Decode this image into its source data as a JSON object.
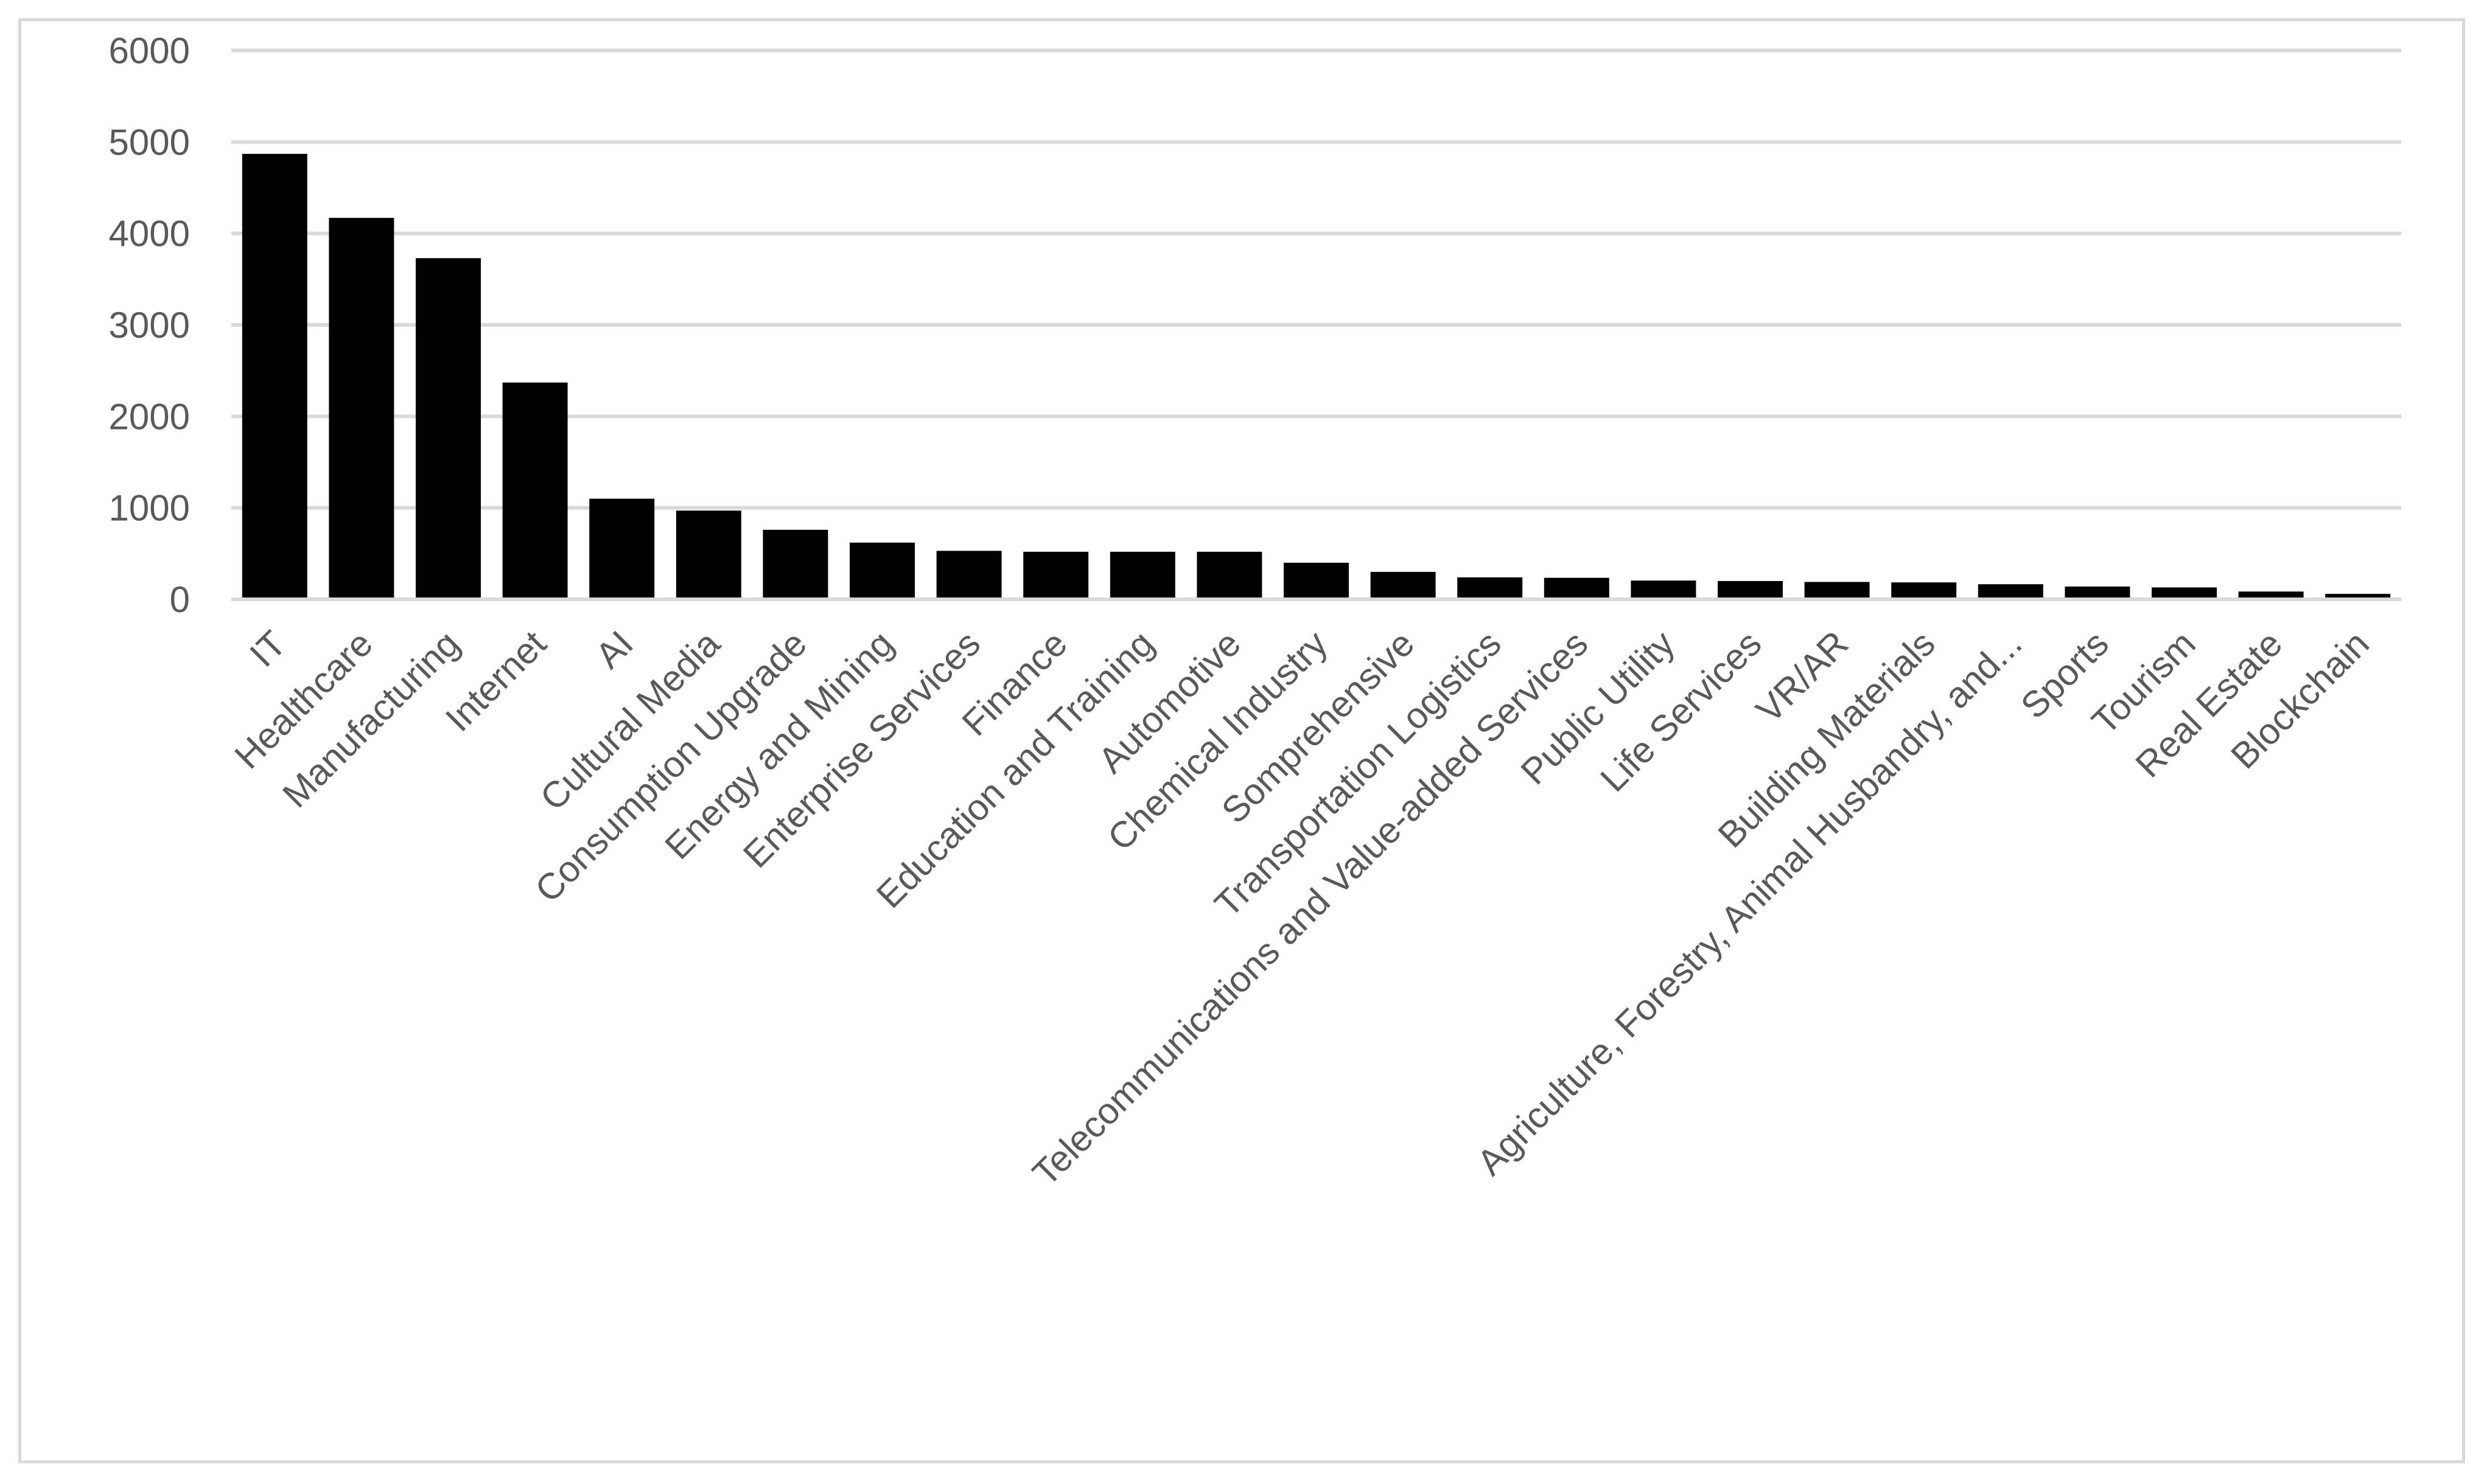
{
  "chart_data": {
    "type": "bar",
    "categories": [
      "IT",
      "Healthcare",
      "Manufacturing",
      "Internet",
      "AI",
      "Cultural Media",
      "Consumption Upgrade",
      "Energy and Mining",
      "Enterprise Services",
      "Finance",
      "Education and Training",
      "Automotive",
      "Chemical Industry",
      "Somprehensive",
      "Transportation Logistics",
      "Telecommunications and Value-added Services",
      "Public Utility",
      "Life Services",
      "VR/AR",
      "Building Materials",
      "Agriculture, Forestry, Animal Husbandry, and...",
      "Sports",
      "Tourism",
      "Real Estate",
      "Blockchain"
    ],
    "values": [
      4870,
      4170,
      3730,
      2370,
      1100,
      970,
      760,
      620,
      530,
      520,
      520,
      520,
      400,
      300,
      240,
      235,
      205,
      200,
      190,
      185,
      165,
      140,
      130,
      85,
      60
    ],
    "title": "",
    "xlabel": "",
    "ylabel": "",
    "ylim": [
      0,
      6000
    ],
    "yticks": [
      0,
      1000,
      2000,
      3000,
      4000,
      5000,
      6000
    ],
    "grid": true,
    "legend": "none",
    "bar_color": "#000000",
    "gridline_color": "#d9d9d9",
    "text_color": "#595959"
  }
}
